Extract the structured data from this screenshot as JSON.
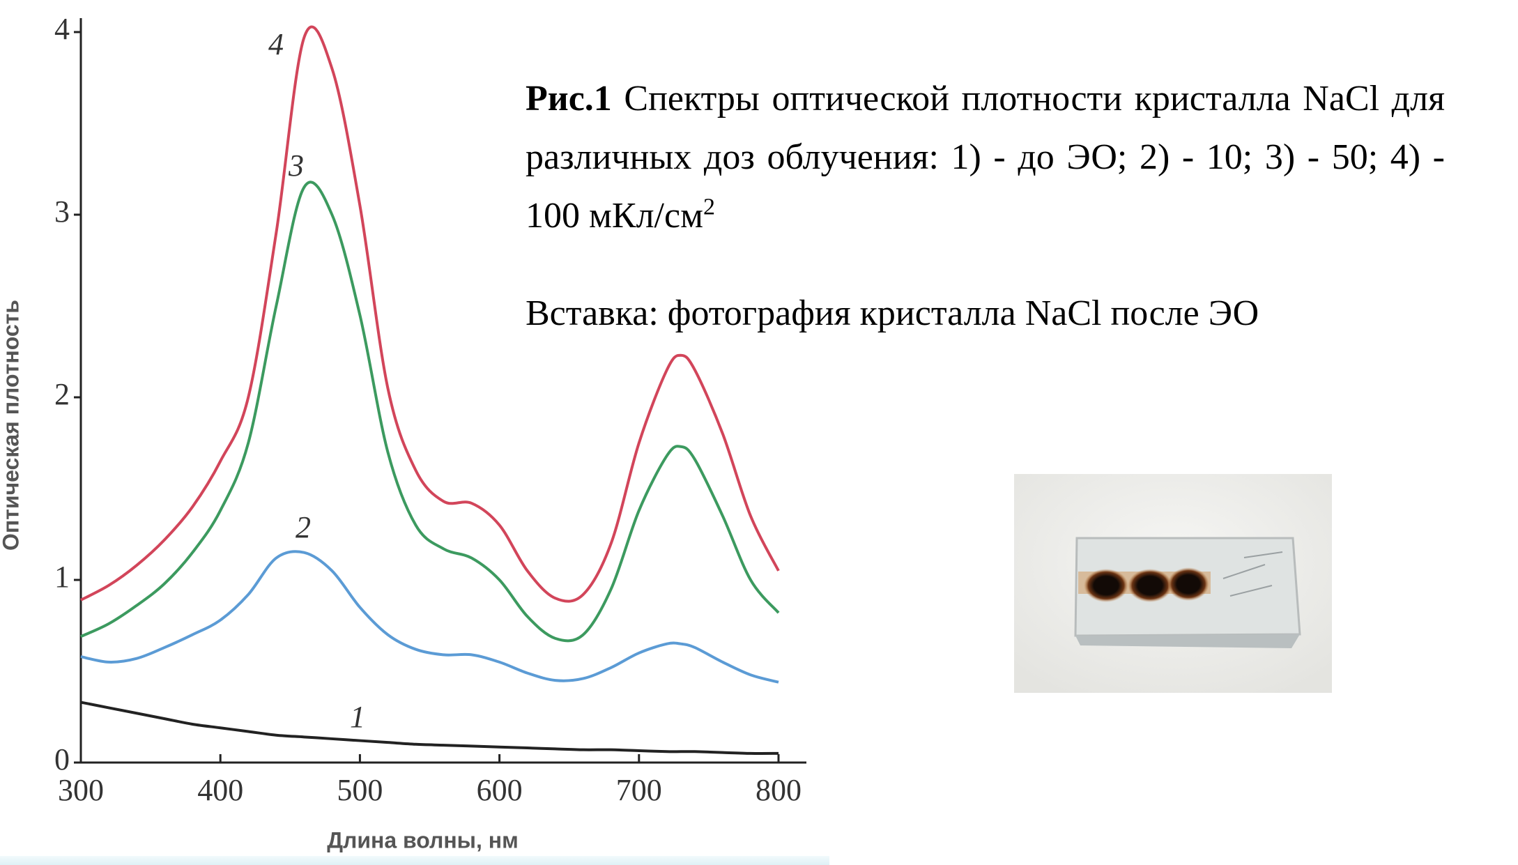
{
  "chart_data": {
    "type": "line",
    "xlabel": "Длина волны, нм",
    "ylabel": "Оптическая плотность",
    "x": [
      300,
      320,
      340,
      360,
      380,
      400,
      420,
      440,
      460,
      480,
      500,
      520,
      540,
      560,
      580,
      600,
      620,
      640,
      660,
      680,
      700,
      720,
      730,
      740,
      760,
      780,
      800
    ],
    "series": [
      {
        "name": "1",
        "color": "#222222",
        "values": [
          0.33,
          0.3,
          0.27,
          0.24,
          0.21,
          0.19,
          0.17,
          0.15,
          0.14,
          0.13,
          0.12,
          0.11,
          0.1,
          0.095,
          0.09,
          0.085,
          0.08,
          0.075,
          0.07,
          0.07,
          0.065,
          0.06,
          0.06,
          0.06,
          0.055,
          0.05,
          0.05
        ]
      },
      {
        "name": "2",
        "color": "#5b9bd5",
        "values": [
          0.58,
          0.55,
          0.57,
          0.63,
          0.7,
          0.78,
          0.92,
          1.12,
          1.15,
          1.05,
          0.85,
          0.7,
          0.62,
          0.59,
          0.59,
          0.55,
          0.49,
          0.45,
          0.46,
          0.52,
          0.6,
          0.65,
          0.65,
          0.63,
          0.55,
          0.48,
          0.44
        ]
      },
      {
        "name": "3",
        "color": "#3c9a5f",
        "values": [
          0.69,
          0.76,
          0.86,
          0.98,
          1.15,
          1.38,
          1.75,
          2.5,
          3.15,
          3.0,
          2.45,
          1.7,
          1.3,
          1.17,
          1.12,
          1.0,
          0.8,
          0.68,
          0.7,
          0.95,
          1.38,
          1.68,
          1.73,
          1.66,
          1.35,
          1.0,
          0.82
        ]
      },
      {
        "name": "4",
        "color": "#d2455a",
        "values": [
          0.89,
          0.97,
          1.08,
          1.22,
          1.4,
          1.65,
          2.0,
          2.9,
          3.97,
          3.8,
          3.05,
          2.05,
          1.6,
          1.43,
          1.42,
          1.3,
          1.05,
          0.9,
          0.92,
          1.2,
          1.75,
          2.15,
          2.23,
          2.15,
          1.8,
          1.35,
          1.05
        ]
      }
    ],
    "xlim": [
      300,
      800
    ],
    "ylim": [
      0,
      4
    ],
    "xticks": [
      300,
      400,
      500,
      600,
      700,
      800
    ],
    "yticks": [
      0,
      1,
      2,
      3,
      4
    ]
  },
  "caption": {
    "label": "Рис.1",
    "text": "Спектры оптической плотности кристалла NaCl для различных доз облучения: 1) - до ЭО; 2) - 10; 3) - 50; 4) - 100 мКл/см",
    "superscript": "2"
  },
  "inset_caption": "Вставка: фотография кристалла NaCl после ЭО"
}
